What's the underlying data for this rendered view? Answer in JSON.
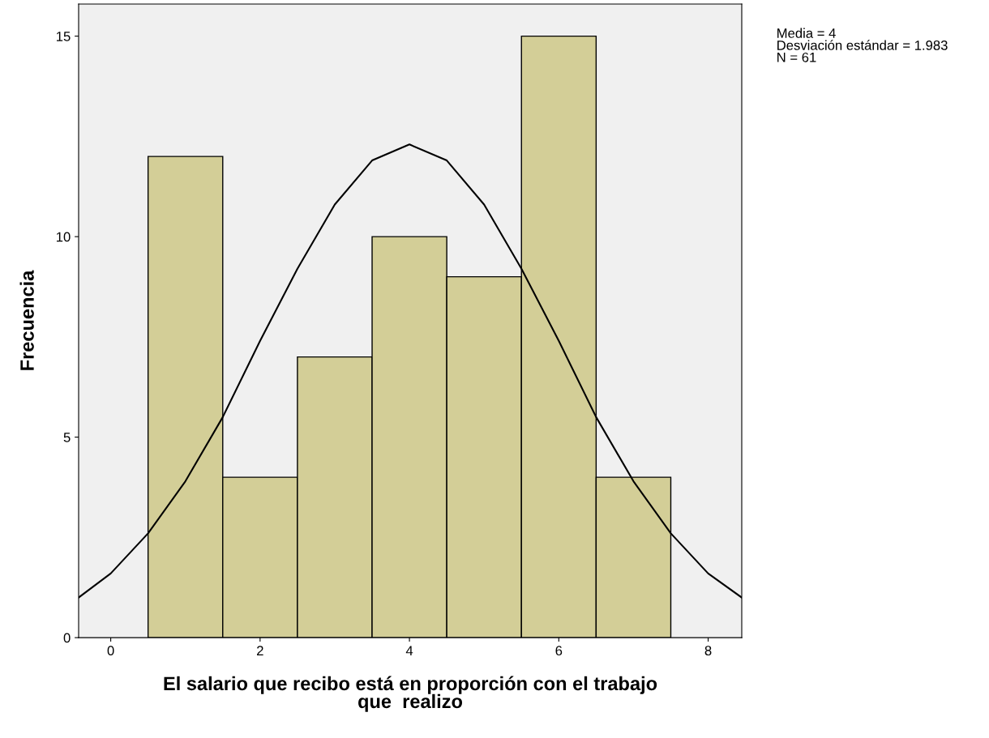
{
  "chart_data": {
    "type": "histogram",
    "xlabel": "El salario que recibo está en proporción con el trabajo\nque  realizo",
    "ylabel": "Frecuencia",
    "bins": [
      0.5,
      1.5,
      2.5,
      3.5,
      4.5,
      5.5,
      6.5,
      7.5
    ],
    "values": [
      12,
      4,
      7,
      10,
      9,
      15,
      4
    ],
    "color": "#d3ce97",
    "series": [
      {
        "type": "line",
        "color": "#000000",
        "x": [
          -0.43,
          0,
          0.5,
          1,
          1.5,
          2,
          2.5,
          3,
          3.5,
          4,
          4.5,
          5,
          5.5,
          6,
          6.5,
          7,
          7.5,
          8,
          8.45
        ],
        "values": [
          1.0,
          1.6,
          2.6,
          3.9,
          5.5,
          7.4,
          9.2,
          10.8,
          11.9,
          12.3,
          11.9,
          10.8,
          9.2,
          7.4,
          5.5,
          3.9,
          2.6,
          1.6,
          1.0
        ]
      }
    ],
    "xlim": [
      -0.43,
      8.45
    ],
    "ylim": [
      0,
      15.8
    ],
    "xticks": [
      0,
      2,
      4,
      6,
      8
    ],
    "yticks": [
      0,
      5,
      10,
      15
    ],
    "annotations": [
      "Media = 4",
      "Desviación estándar = 1.983",
      "N = 61"
    ],
    "grid": false,
    "legend": false
  }
}
